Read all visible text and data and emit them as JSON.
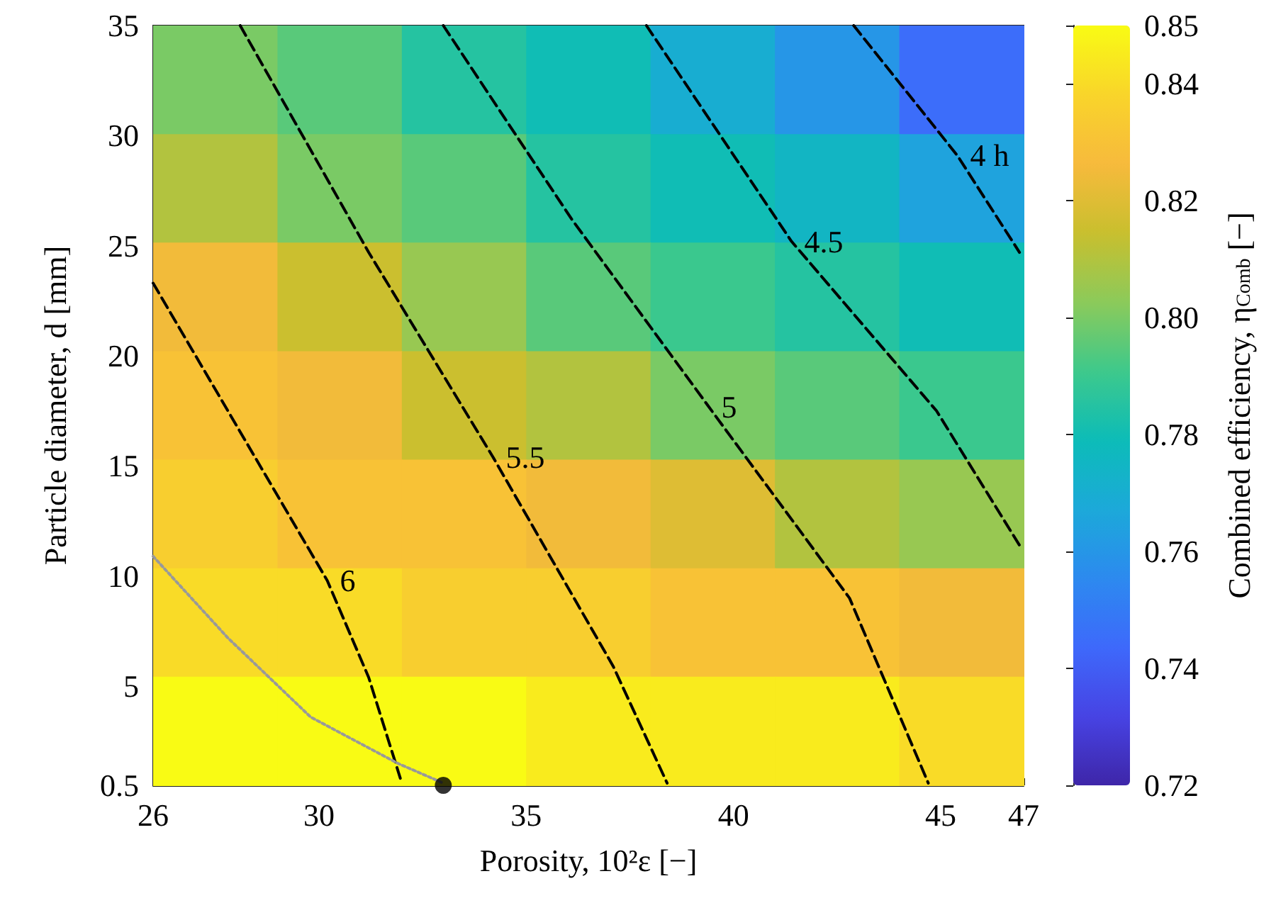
{
  "chart_data": {
    "type": "heatmap",
    "xlabel": "Porosity, 10²ε [−]",
    "ylabel": "Particle diameter, d [mm]",
    "clabel": "Combined efficiency, η$_{Comb}$ [−]",
    "xlim": [
      26,
      47
    ],
    "ylim": [
      0.5,
      35
    ],
    "xticks": [
      26,
      30,
      35,
      40,
      45,
      47
    ],
    "yticks": [
      0.5,
      5,
      10,
      15,
      20,
      25,
      30,
      35
    ],
    "clim": [
      0.72,
      0.85
    ],
    "cticks": [
      0.72,
      0.74,
      0.76,
      0.78,
      {
        "value": 0.8,
        "label": "0.80"
      },
      0.82,
      0.84,
      0.85
    ],
    "cells": [
      [
        0.8,
        0.795,
        0.785,
        0.78,
        0.77,
        0.76,
        0.745
      ],
      [
        0.81,
        0.8,
        0.795,
        0.785,
        0.78,
        0.775,
        0.765
      ],
      [
        0.825,
        0.815,
        0.805,
        0.795,
        0.79,
        0.785,
        0.78
      ],
      [
        0.83,
        0.825,
        0.815,
        0.81,
        0.8,
        0.795,
        0.79
      ],
      [
        0.835,
        0.83,
        0.83,
        0.825,
        0.82,
        0.81,
        0.805
      ],
      [
        0.84,
        0.84,
        0.835,
        0.835,
        0.83,
        0.83,
        0.825
      ],
      [
        0.85,
        0.85,
        0.85,
        0.845,
        0.845,
        0.845,
        0.84
      ]
    ],
    "series": [
      {
        "type": "line",
        "name": "6",
        "color": "#000000",
        "line_style": "dashed",
        "x": [
          26,
          30.2,
          31.2,
          32
        ],
        "values": [
          23.3,
          9.8,
          5.4,
          0.6
        ]
      },
      {
        "type": "line",
        "name": "5.5",
        "color": "#000000",
        "line_style": "dashed",
        "x": [
          28.1,
          31.2,
          34.2,
          37.1,
          38.4
        ],
        "values": [
          35,
          24.7,
          15.4,
          5.9,
          0.6
        ]
      },
      {
        "type": "line",
        "name": "5",
        "color": "#000000",
        "line_style": "dashed",
        "x": [
          33,
          36.1,
          39.4,
          42.8,
          44.7
        ],
        "values": [
          35,
          26.2,
          17.7,
          9,
          0.6
        ]
      },
      {
        "type": "line",
        "name": "4.5",
        "color": "#000000",
        "line_style": "dashed",
        "x": [
          37.9,
          41.4,
          44.9,
          46.9
        ],
        "values": [
          35,
          25.2,
          17.5,
          11.4
        ]
      },
      {
        "type": "line",
        "name": "4 h",
        "color": "#000000",
        "line_style": "dashed",
        "x": [
          42.9,
          45.4,
          46.9
        ],
        "values": [
          35,
          29.1,
          24.7
        ]
      },
      {
        "type": "line",
        "color": "#999999",
        "line_style": "dotted",
        "x": [
          26,
          27.8,
          29.8,
          31.9,
          33
        ],
        "values": [
          10.9,
          7.2,
          3.6,
          1.5,
          0.6
        ]
      },
      {
        "type": "scatter",
        "color": "#000000",
        "marker": "circle",
        "x": [
          33
        ],
        "values": [
          0.5
        ]
      }
    ]
  }
}
